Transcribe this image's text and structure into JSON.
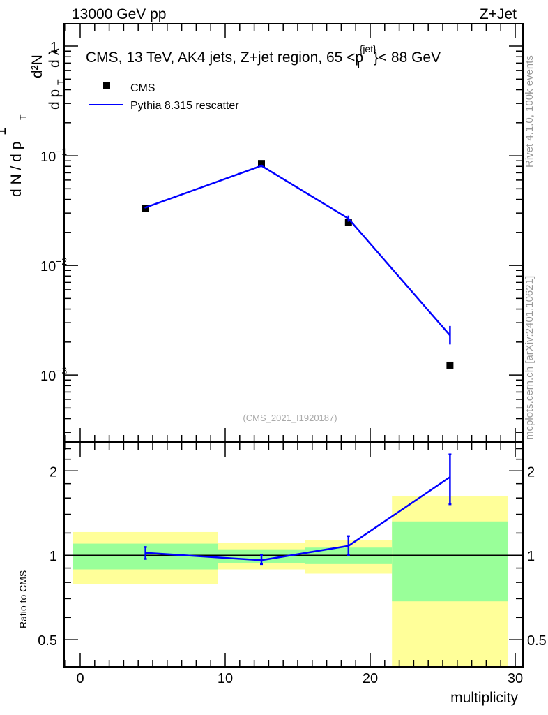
{
  "chart_data": {
    "type": "line",
    "header_left": "13000 GeV pp",
    "header_right": "Z+Jet",
    "title": "CMS, 13 TeV, AK4 jets, Z+jet region, 65 <p_T^{jet}< 88 GeV",
    "title_parts": {
      "main": "CMS, 13 TeV, AK4 jets, Z+jet region, 65 <p",
      "sub": "T",
      "sup": "{jet}",
      "tail": "}< 88 GeV"
    },
    "ylabel": "1/(dN/dpT) d²N/(dpT dλ)",
    "ylabel_parts": {
      "a": "1",
      "b": "d N / d p",
      "c": "T",
      "d": "d²N",
      "e": "d p",
      "f": "T",
      "g": "d λ"
    },
    "xlabel": "multiplicity",
    "ratio_ylabel": "Ratio to CMS",
    "side_label_top": "Rivet 4.1.0,  100k events",
    "side_label_bottom": "mcplots.cern.ch [arXiv:2401.10621]",
    "watermark": "(CMS_2021_I1920187)",
    "xlim": [
      -1.1,
      30
    ],
    "ylim": [
      0.000245,
      1.6
    ],
    "ratio_ylim": [
      0.4,
      2.52
    ],
    "yscale": "log",
    "xticks": [
      0,
      10,
      20,
      30
    ],
    "xtick_labels": [
      "0",
      "10",
      "20",
      "30"
    ],
    "yticks": [
      1,
      0.1,
      0.01,
      0.001
    ],
    "ytick_labels": [
      {
        "base": "1",
        "exp": ""
      },
      {
        "base": "10",
        "exp": "−1"
      },
      {
        "base": "10",
        "exp": "−2"
      },
      {
        "base": "10",
        "exp": "−3"
      }
    ],
    "ratio_yticks": [
      0.5,
      1,
      2
    ],
    "ratio_ytick_labels": [
      "0.5",
      "1",
      "2"
    ],
    "bins": [
      [
        -0.5,
        9.5
      ],
      [
        9.5,
        15.5
      ],
      [
        15.5,
        21.5
      ],
      [
        21.5,
        29.5
      ]
    ],
    "x": [
      4.5,
      12.5,
      18.5,
      25.5
    ],
    "legend": {
      "placement": "top-left",
      "entries": [
        "CMS",
        "Pythia 8.315 rescatter"
      ]
    },
    "series": [
      {
        "name": "CMS",
        "style": "markers",
        "color": "#000000",
        "values": [
          0.0333,
          0.085,
          0.0248,
          0.00123
        ]
      },
      {
        "name": "Pythia 8.315 rescatter",
        "style": "line",
        "color": "#0000ff",
        "values": [
          0.0337,
          0.081,
          0.0267,
          0.0023
        ],
        "err_low": [
          0.0331,
          0.079,
          0.025,
          0.0019
        ],
        "err_high": [
          0.0343,
          0.083,
          0.0285,
          0.0028
        ]
      }
    ],
    "ratio": {
      "values": [
        1.02,
        0.96,
        1.08,
        1.9
      ],
      "err_low": [
        0.97,
        0.93,
        1.0,
        1.52
      ],
      "err_high": [
        1.07,
        1.0,
        1.17,
        2.29
      ],
      "band_yellow": [
        [
          0.79,
          1.21
        ],
        [
          0.89,
          1.11
        ],
        [
          0.86,
          1.13
        ],
        [
          0.4,
          1.63
        ]
      ],
      "band_green": [
        [
          0.89,
          1.1
        ],
        [
          0.94,
          1.05
        ],
        [
          0.93,
          1.065
        ],
        [
          0.685,
          1.32
        ]
      ],
      "yellow_color": "#ffff99",
      "green_color": "#99ff99"
    }
  }
}
